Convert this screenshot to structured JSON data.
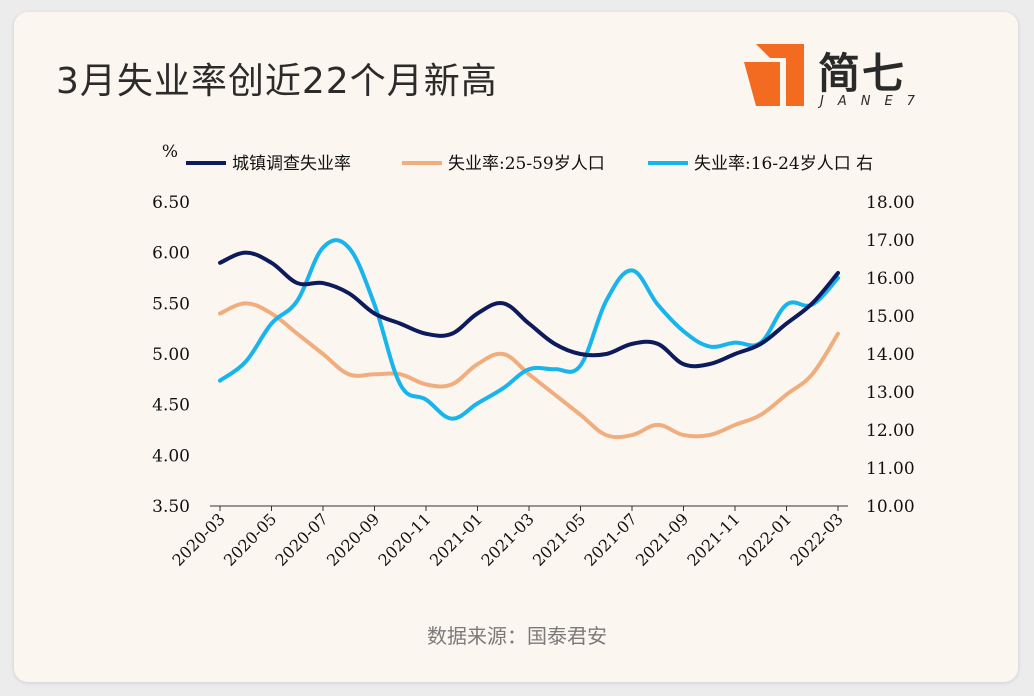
{
  "title": "3月失业率创近22个月新高",
  "logo": {
    "cn": "简七",
    "en": "JANE7",
    "color": "#f26b21"
  },
  "source": "数据来源：国泰君安",
  "chart_data": {
    "type": "line",
    "left_axis": {
      "unit": "%",
      "ylim": [
        3.5,
        6.5
      ],
      "ticks": [
        "3.50",
        "4.00",
        "4.50",
        "5.00",
        "5.50",
        "6.00",
        "6.50"
      ]
    },
    "right_axis": {
      "label": "右",
      "ylim": [
        10,
        18
      ],
      "ticks": [
        "10.00",
        "11.00",
        "12.00",
        "13.00",
        "14.00",
        "15.00",
        "16.00",
        "17.00",
        "18.00"
      ]
    },
    "x_labels": [
      "2020-03",
      "2020-05",
      "2020-07",
      "2020-09",
      "2020-11",
      "2021-01",
      "2021-03",
      "2021-05",
      "2021-07",
      "2021-09",
      "2021-11",
      "2022-01",
      "2022-03"
    ],
    "x": [
      "2020-03",
      "2020-04",
      "2020-05",
      "2020-06",
      "2020-07",
      "2020-08",
      "2020-09",
      "2020-10",
      "2020-11",
      "2020-12",
      "2021-01",
      "2021-02",
      "2021-03",
      "2021-04",
      "2021-05",
      "2021-06",
      "2021-07",
      "2021-08",
      "2021-09",
      "2021-10",
      "2021-11",
      "2021-12",
      "2022-01",
      "2022-02",
      "2022-03"
    ],
    "series": [
      {
        "name": "城镇调查失业率",
        "axis": "left",
        "color": "#0d1b5c",
        "values": [
          5.9,
          6.0,
          5.9,
          5.7,
          5.7,
          5.6,
          5.4,
          5.3,
          5.2,
          5.2,
          5.4,
          5.5,
          5.3,
          5.1,
          5.0,
          5.0,
          5.1,
          5.1,
          4.9,
          4.9,
          5.0,
          5.1,
          5.3,
          5.5,
          5.8
        ]
      },
      {
        "name": "失业率:25-59岁人口",
        "axis": "left",
        "color": "#f0ad7e",
        "values": [
          5.4,
          5.5,
          5.4,
          5.2,
          5.0,
          4.8,
          4.8,
          4.8,
          4.7,
          4.7,
          4.9,
          5.0,
          4.8,
          4.6,
          4.4,
          4.2,
          4.2,
          4.3,
          4.2,
          4.2,
          4.3,
          4.4,
          4.6,
          4.8,
          5.2
        ]
      },
      {
        "name": "失业率:16-24岁人口 右",
        "axis": "right",
        "color": "#18b4ec",
        "values": [
          13.3,
          13.8,
          14.8,
          15.4,
          16.8,
          16.8,
          15.3,
          13.2,
          12.8,
          12.3,
          12.7,
          13.1,
          13.6,
          13.6,
          13.7,
          15.4,
          16.2,
          15.3,
          14.6,
          14.2,
          14.3,
          14.3,
          15.3,
          15.3,
          16.0
        ]
      }
    ],
    "grid": false,
    "legend": "top"
  }
}
